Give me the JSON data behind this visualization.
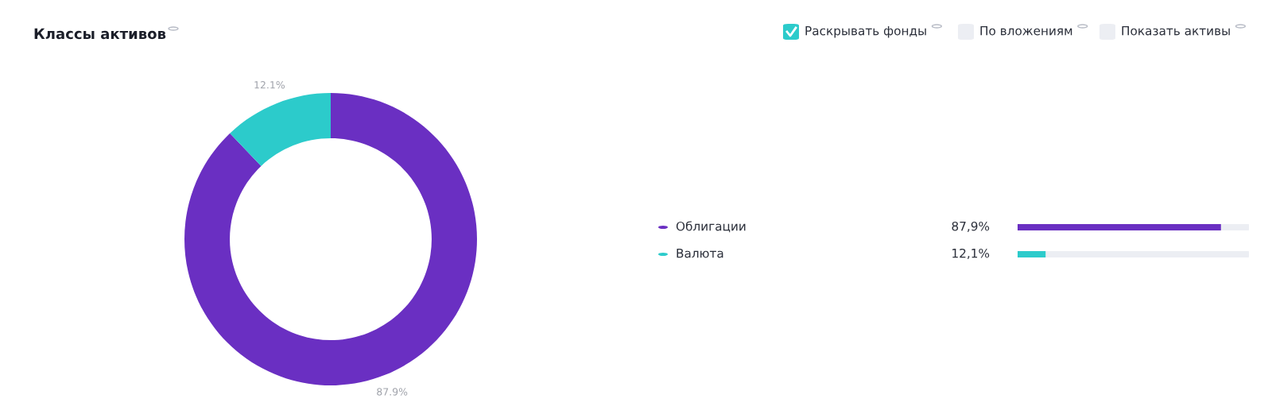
{
  "chart_data": [
    {
      "type": "donut",
      "title": "Классы активов",
      "categories": [
        "Облигации",
        "Валюта"
      ],
      "values": [
        87.9,
        12.1
      ],
      "colors": [
        "#6a2fc2",
        "#2ccbcb"
      ],
      "value_labels": [
        "87.9%",
        "12.1%"
      ],
      "legend": "right",
      "annotations": [
        "Раскрывать фонды",
        "По вложениям",
        "Показать активы"
      ]
    },
    {
      "type": "bar",
      "orientation": "horizontal",
      "categories": [
        null,
        null
      ],
      "values": [
        87.9,
        12.1
      ],
      "colors": [
        "#6a2fc2",
        "#2ccbcb"
      ],
      "value_labels": [
        "87,9%",
        "12,1%"
      ],
      "xlim": [
        0,
        100
      ]
    }
  ]
}
